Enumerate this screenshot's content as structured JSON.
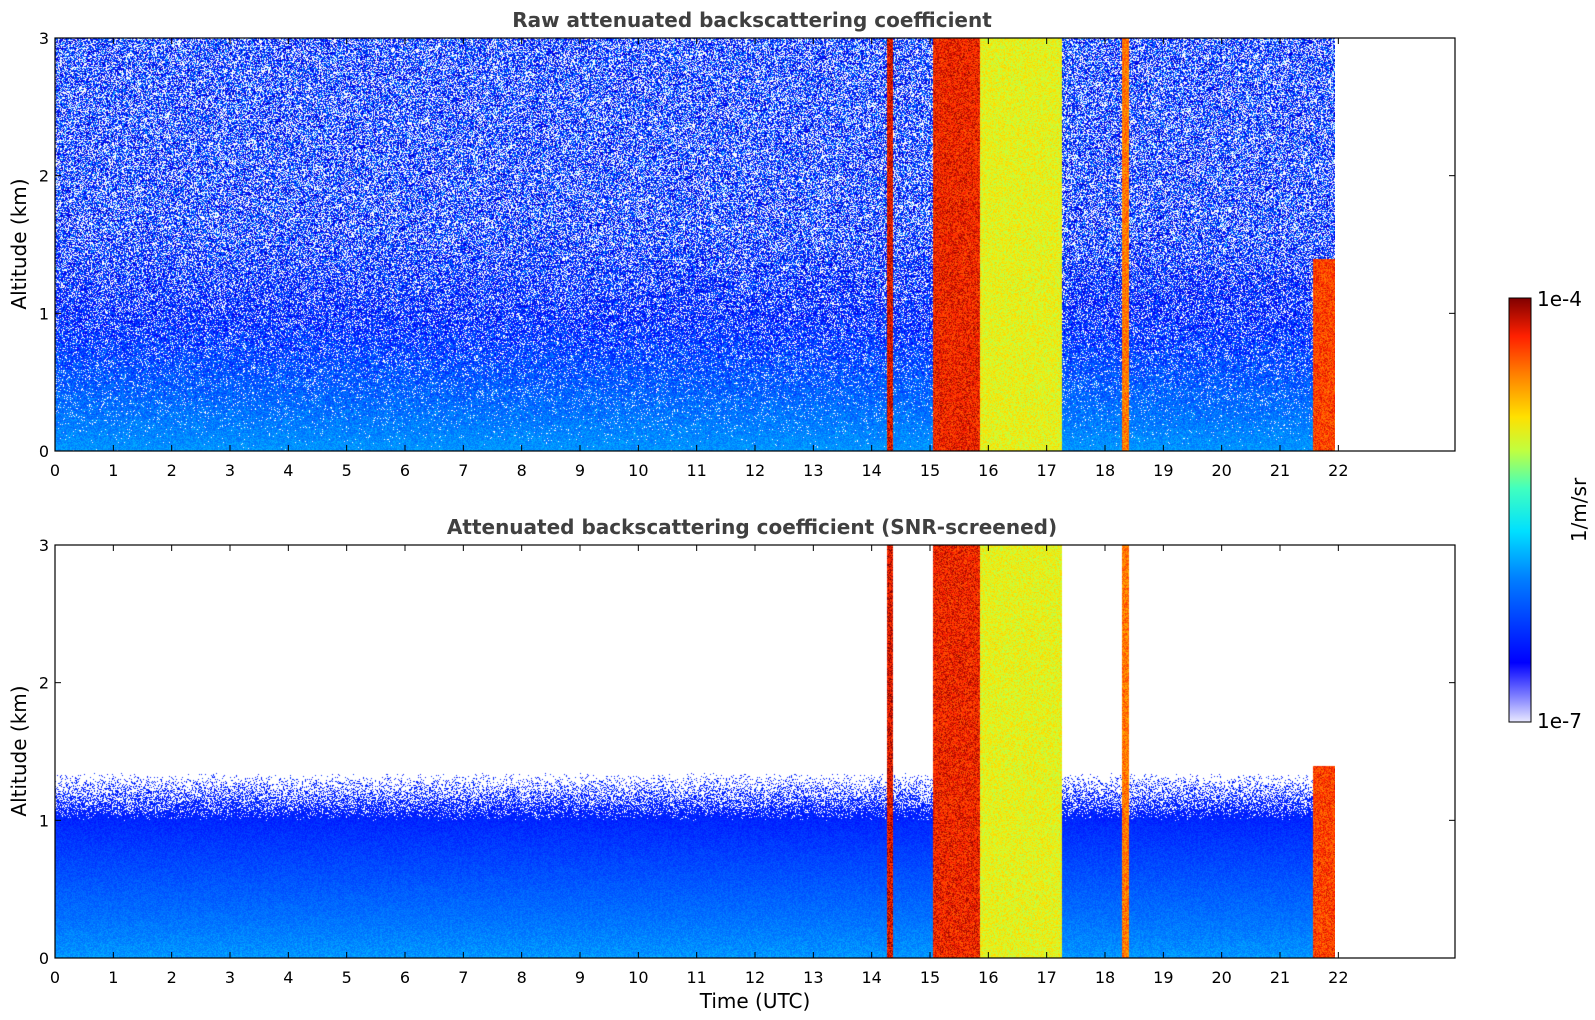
{
  "chart_data": [
    {
      "type": "heatmap",
      "title": "Raw attenuated backscattering coefficient",
      "xlabel": "",
      "ylabel": "Altitude (km)",
      "xlim": [
        0,
        24
      ],
      "ylim": [
        0,
        3
      ],
      "x_ticks": [
        "0",
        "1",
        "2",
        "3",
        "4",
        "5",
        "6",
        "7",
        "8",
        "9",
        "10",
        "11",
        "12",
        "13",
        "14",
        "15",
        "16",
        "17",
        "18",
        "19",
        "20",
        "21",
        "22"
      ],
      "y_ticks": [
        "0",
        "1",
        "2",
        "3"
      ],
      "data_end_time": 21.95,
      "cloud_bands": [
        {
          "t0": 14.25,
          "t1": 14.35,
          "top": 3.0,
          "level": 0.95
        },
        {
          "t0": 15.05,
          "t1": 15.85,
          "top": 3.0,
          "level": 0.93
        },
        {
          "t0": 15.85,
          "t1": 17.25,
          "top": 3.0,
          "level": 0.7
        },
        {
          "t0": 18.28,
          "t1": 18.4,
          "top": 3.0,
          "level": 0.85
        },
        {
          "t0": 21.55,
          "t1": 21.95,
          "top": 1.4,
          "level": 0.9
        }
      ]
    },
    {
      "type": "heatmap",
      "title": "Attenuated backscattering coefficient (SNR-screened)",
      "xlabel": "Time (UTC)",
      "ylabel": "Altitude (km)",
      "xlim": [
        0,
        24
      ],
      "ylim": [
        0,
        3
      ],
      "x_ticks": [
        "0",
        "1",
        "2",
        "3",
        "4",
        "5",
        "6",
        "7",
        "8",
        "9",
        "10",
        "11",
        "12",
        "13",
        "14",
        "15",
        "16",
        "17",
        "18",
        "19",
        "20",
        "21",
        "22"
      ],
      "y_ticks": [
        "0",
        "1",
        "2",
        "3"
      ],
      "data_end_time": 21.95,
      "cloud_bands": [
        {
          "t0": 14.25,
          "t1": 14.35,
          "top": 3.0,
          "level": 0.95
        },
        {
          "t0": 15.05,
          "t1": 15.85,
          "top": 3.0,
          "level": 0.93
        },
        {
          "t0": 15.85,
          "t1": 17.25,
          "top": 3.0,
          "level": 0.7
        },
        {
          "t0": 18.28,
          "t1": 18.4,
          "top": 3.0,
          "level": 0.85
        },
        {
          "t0": 21.55,
          "t1": 21.95,
          "top": 1.4,
          "level": 0.9
        }
      ]
    }
  ],
  "colorbar": {
    "label": "1/m/sr",
    "max_label": "1e-4",
    "min_label": "1e-7",
    "colormap": "jet"
  }
}
